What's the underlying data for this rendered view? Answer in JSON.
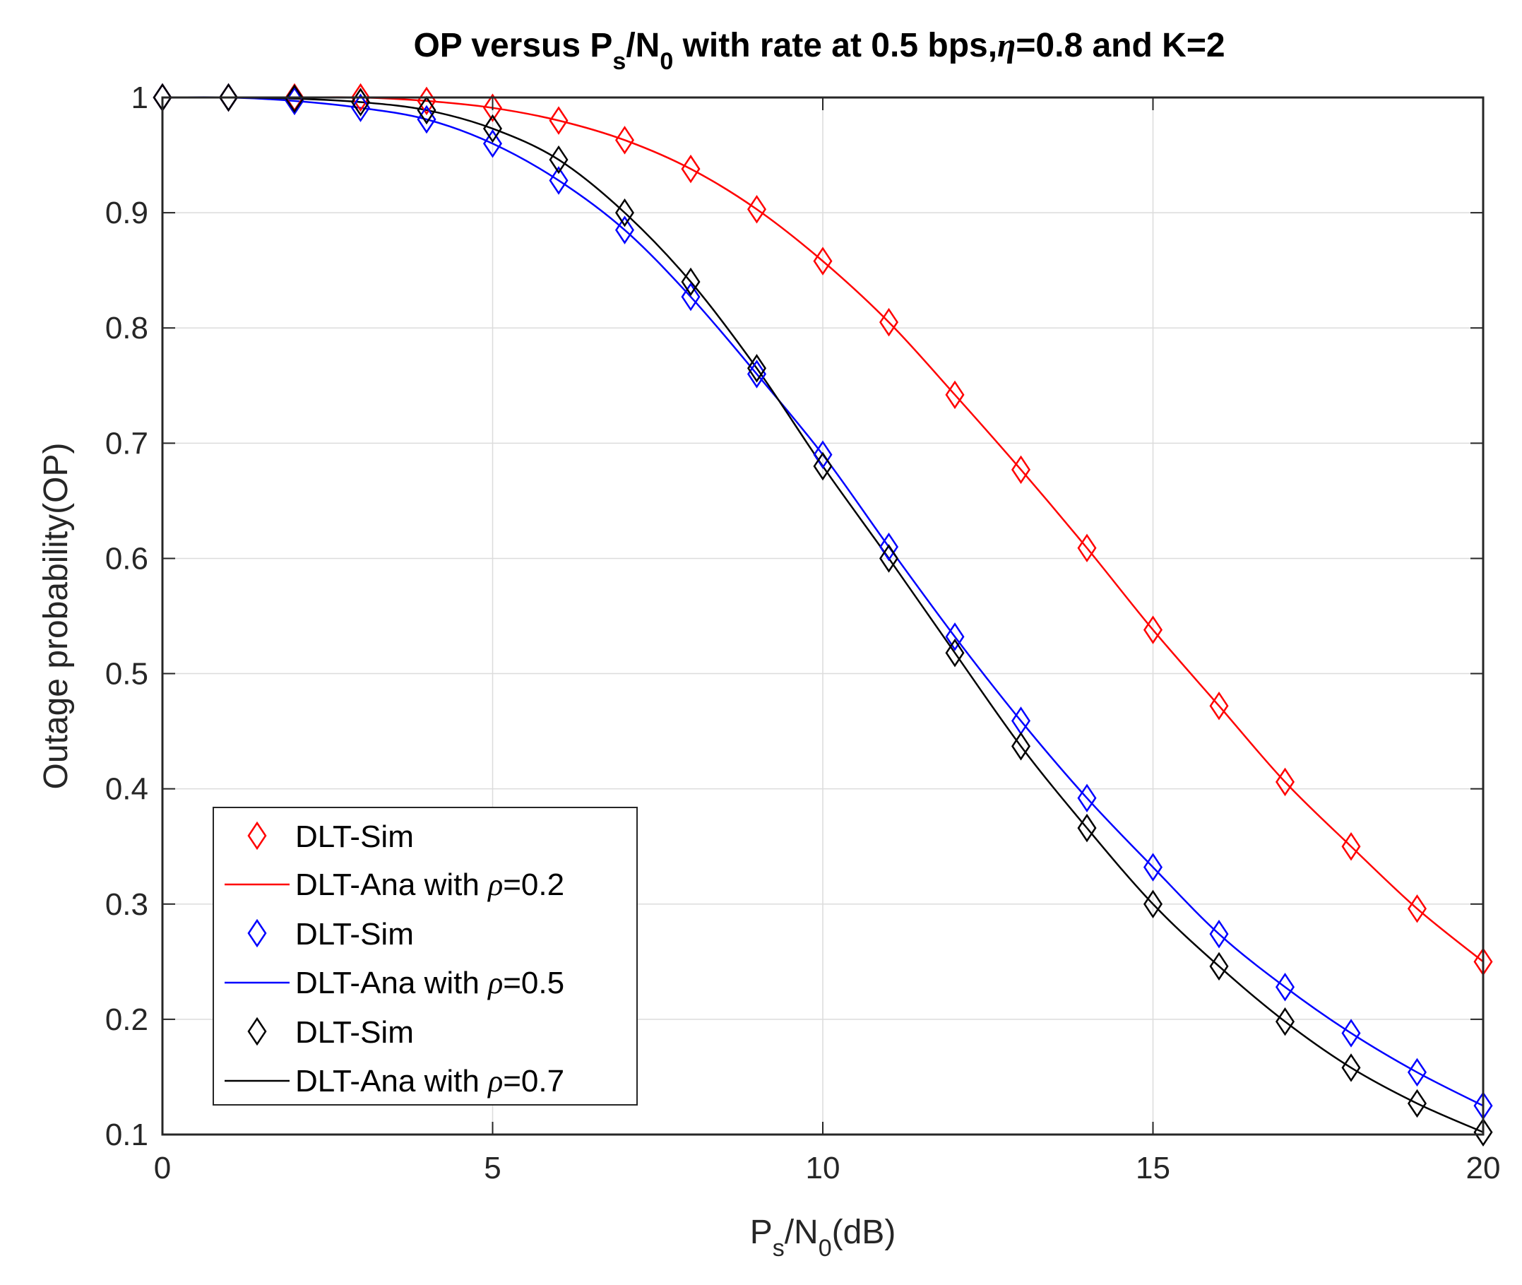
{
  "chart_data": {
    "type": "line",
    "title": {
      "prefix": "OP versus P",
      "sub1": "s",
      "mid": "/N",
      "sub2": "0",
      "rest": " with rate at 0.5 bps,",
      "eta_symbol": "η",
      "suffix": "=0.8 and K=2"
    },
    "ylabel": "Outage probability(OP)",
    "xlabel": {
      "main": "P",
      "sub1": "s",
      "mid": "/N",
      "sub2": "0",
      "suffix": "(dB)"
    },
    "xlim": [
      0,
      20
    ],
    "ylim": [
      0.1,
      1
    ],
    "xticks": [
      0,
      5,
      10,
      15,
      20
    ],
    "yticks": [
      0.1,
      0.2,
      0.3,
      0.4,
      0.5,
      0.6,
      0.7,
      0.8,
      0.9,
      1
    ],
    "ytick_labels": [
      "0.1",
      "0.2",
      "0.3",
      "0.4",
      "0.5",
      "0.6",
      "0.7",
      "0.8",
      "0.9",
      "1"
    ],
    "xtick_labels": [
      "0",
      "5",
      "10",
      "15",
      "20"
    ],
    "grid": true,
    "legend_position": "bottom-left",
    "x": [
      0,
      1,
      2,
      3,
      4,
      5,
      6,
      7,
      8,
      9,
      10,
      11,
      12,
      13,
      14,
      15,
      16,
      17,
      18,
      19,
      20
    ],
    "series": [
      {
        "name": "ρ=0.2",
        "color": "#ff0000",
        "sim_label": "DLT-Sim",
        "ana_label_prefix": "DLT-Ana with ",
        "rho_symbol": "ρ",
        "rho_value": "=0.2",
        "values": [
          1.0,
          1.0,
          1.0,
          1.0,
          0.997,
          0.991,
          0.98,
          0.963,
          0.938,
          0.903,
          0.858,
          0.805,
          0.742,
          0.677,
          0.609,
          0.538,
          0.472,
          0.406,
          0.35,
          0.296,
          0.25
        ]
      },
      {
        "name": "ρ=0.5",
        "color": "#0000ff",
        "sim_label": "DLT-Sim",
        "ana_label_prefix": "DLT-Ana with ",
        "rho_symbol": "ρ",
        "rho_value": "=0.5",
        "values": [
          1.0,
          1.0,
          0.997,
          0.991,
          0.981,
          0.96,
          0.928,
          0.885,
          0.827,
          0.76,
          0.69,
          0.61,
          0.532,
          0.459,
          0.392,
          0.332,
          0.274,
          0.228,
          0.188,
          0.154,
          0.125
        ]
      },
      {
        "name": "ρ=0.7",
        "color": "#000000",
        "sim_label": "DLT-Sim",
        "ana_label_prefix": "DLT-Ana with ",
        "rho_symbol": "ρ",
        "rho_value": "=0.7",
        "values": [
          1.0,
          1.0,
          0.999,
          0.996,
          0.989,
          0.973,
          0.946,
          0.9,
          0.84,
          0.765,
          0.68,
          0.6,
          0.518,
          0.437,
          0.366,
          0.3,
          0.246,
          0.198,
          0.158,
          0.127,
          0.102
        ]
      }
    ]
  }
}
